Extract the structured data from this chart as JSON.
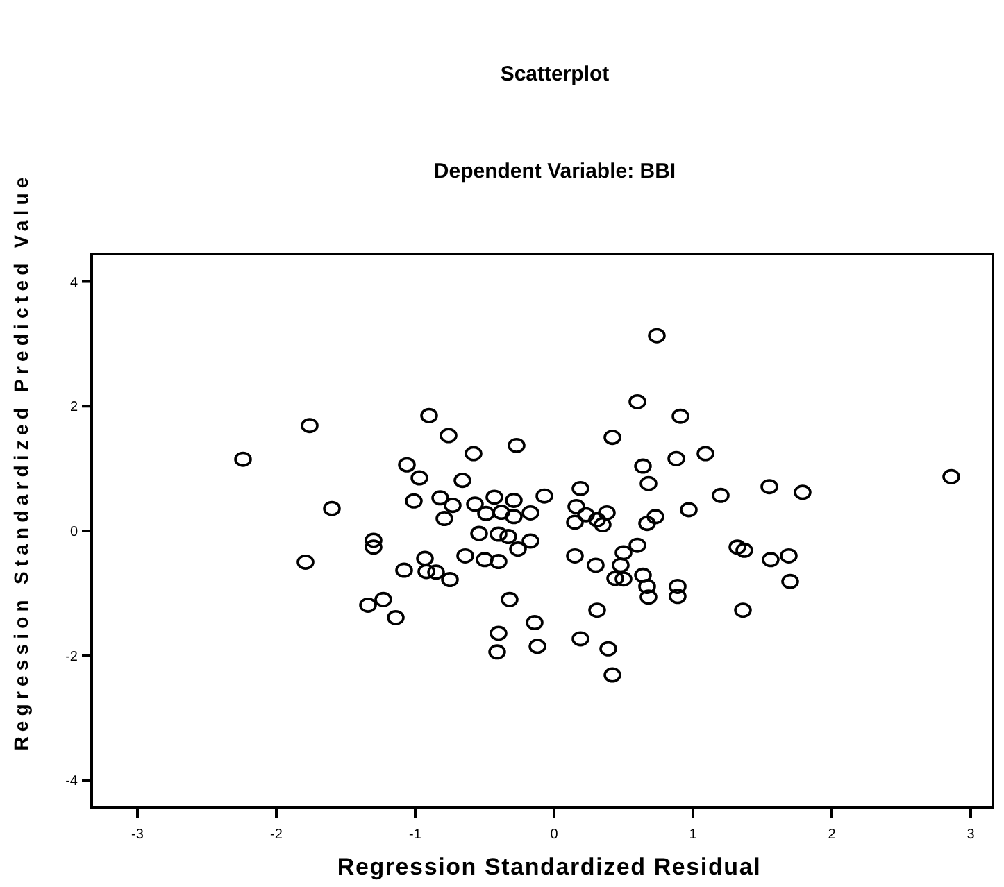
{
  "chart_data": {
    "type": "scatter",
    "title": "Scatterplot",
    "subtitle": "Dependent Variable: BBI",
    "xlabel": "Regression Standardized Residual",
    "ylabel": "Regression Standardized Predicted Value",
    "xlim": [
      -3.33,
      3.16
    ],
    "ylim": [
      -4.44,
      4.44
    ],
    "xticks": [
      -3,
      -2,
      -1,
      0,
      1,
      2,
      3
    ],
    "yticks": [
      -4,
      -2,
      0,
      2,
      4
    ],
    "grid": false,
    "marker": "circle",
    "series": [
      {
        "color": "#000000",
        "x": [
          -2.24,
          -1.76,
          -1.6,
          -1.79,
          -1.3,
          -1.3,
          -1.34,
          -1.23,
          -1.14,
          -1.06,
          -0.97,
          -1.01,
          -1.08,
          -0.9,
          -0.76,
          -0.58,
          -0.27,
          -0.66,
          -0.82,
          -0.73,
          -0.79,
          -0.93,
          -0.92,
          -0.85,
          -0.75,
          -0.57,
          -0.49,
          -0.43,
          -0.29,
          -0.38,
          -0.29,
          -0.17,
          -0.07,
          -0.54,
          -0.4,
          -0.33,
          -0.17,
          -0.26,
          -0.64,
          -0.5,
          -0.4,
          -0.32,
          -0.14,
          -0.4,
          -0.41,
          -0.12,
          0.6,
          0.91,
          0.42,
          0.88,
          1.09,
          0.64,
          0.68,
          0.19,
          0.16,
          0.23,
          0.15,
          0.31,
          0.38,
          0.35,
          0.73,
          0.67,
          0.97,
          1.2,
          1.55,
          1.79,
          0.6,
          0.5,
          0.15,
          0.3,
          0.48,
          0.44,
          0.5,
          0.64,
          0.67,
          0.68,
          0.89,
          0.89,
          1.32,
          1.37,
          1.56,
          1.69,
          1.7,
          0.31,
          1.36,
          0.19,
          0.39,
          0.74,
          0.42,
          2.86
        ],
        "values": [
          1.15,
          1.69,
          0.36,
          -0.5,
          -0.15,
          -0.26,
          -1.19,
          -1.1,
          -1.39,
          1.06,
          0.85,
          0.48,
          -0.63,
          1.85,
          1.53,
          1.24,
          1.37,
          0.81,
          0.53,
          0.41,
          0.2,
          -0.44,
          -0.65,
          -0.66,
          -0.78,
          0.43,
          0.28,
          0.54,
          0.49,
          0.3,
          0.23,
          0.29,
          0.56,
          -0.04,
          -0.05,
          -0.09,
          -0.16,
          -0.29,
          -0.4,
          -0.46,
          -0.49,
          -1.1,
          -1.47,
          -1.64,
          -1.94,
          -1.85,
          2.07,
          1.84,
          1.5,
          1.16,
          1.24,
          1.04,
          0.76,
          0.68,
          0.39,
          0.26,
          0.14,
          0.18,
          0.29,
          0.1,
          0.23,
          0.12,
          0.34,
          0.57,
          0.71,
          0.62,
          -0.23,
          -0.35,
          -0.4,
          -0.55,
          -0.55,
          -0.76,
          -0.77,
          -0.71,
          -0.89,
          -1.06,
          -0.89,
          -1.05,
          -0.26,
          -0.31,
          -0.46,
          -0.4,
          -0.81,
          -1.27,
          -1.27,
          -1.73,
          -1.89,
          3.13,
          -2.31,
          0.87
        ]
      }
    ]
  }
}
